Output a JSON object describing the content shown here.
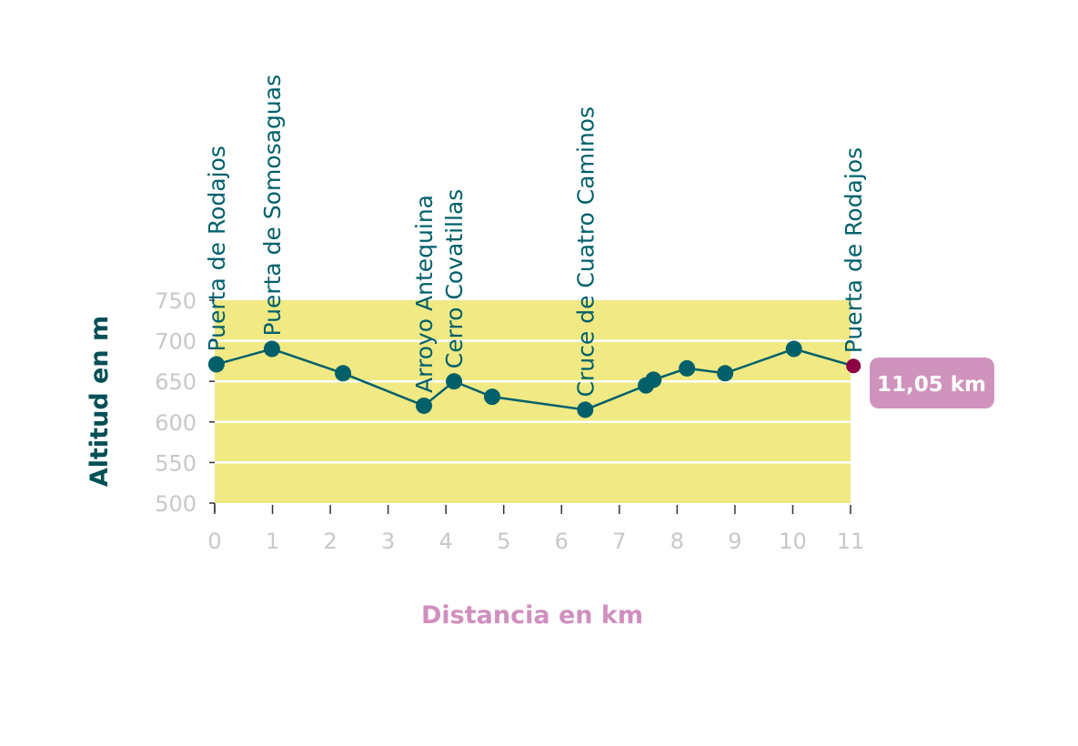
{
  "chart_data": {
    "type": "line",
    "title": "",
    "xlabel": "Distancia en km",
    "ylabel": "Altitud en m",
    "xlim": [
      0,
      11
    ],
    "ylim": [
      500,
      750
    ],
    "xticks": [
      0,
      1,
      2,
      3,
      4,
      5,
      6,
      7,
      8,
      9,
      10,
      11
    ],
    "yticks": [
      500,
      550,
      600,
      650,
      700,
      750
    ],
    "grid": true,
    "points": [
      {
        "x": 0.03,
        "y": 671
      },
      {
        "x": 0.99,
        "y": 690
      },
      {
        "x": 2.22,
        "y": 660
      },
      {
        "x": 3.62,
        "y": 620
      },
      {
        "x": 4.14,
        "y": 650
      },
      {
        "x": 4.8,
        "y": 631
      },
      {
        "x": 6.41,
        "y": 615
      },
      {
        "x": 7.46,
        "y": 645
      },
      {
        "x": 7.59,
        "y": 652
      },
      {
        "x": 8.17,
        "y": 666
      },
      {
        "x": 8.83,
        "y": 660
      },
      {
        "x": 10.02,
        "y": 690
      },
      {
        "x": 11.05,
        "y": 669
      }
    ],
    "waypoints": [
      {
        "x": 0.03,
        "y": 671,
        "label": "Puerta de Rodajos"
      },
      {
        "x": 0.99,
        "y": 690,
        "label": "Puerta de Somosaguas"
      },
      {
        "x": 3.62,
        "y": 620,
        "label": "Arroyo Antequina"
      },
      {
        "x": 4.14,
        "y": 650,
        "label": "Cerro Covatillas"
      },
      {
        "x": 6.41,
        "y": 615,
        "label": "Cruce de Cuatro Caminos"
      },
      {
        "x": 11.05,
        "y": 669,
        "label": "Puerta de Rodajos"
      }
    ],
    "end_badge": "11,05 km",
    "colors": {
      "plot_bg": "#f0e984",
      "line": "#00606a",
      "point": "#00606a",
      "end_point": "#8b0045",
      "badge": "#cf93bd",
      "tick_label": "#c8c8c8",
      "ylabel": "#004f55",
      "xlabel": "#d08fbf"
    }
  }
}
